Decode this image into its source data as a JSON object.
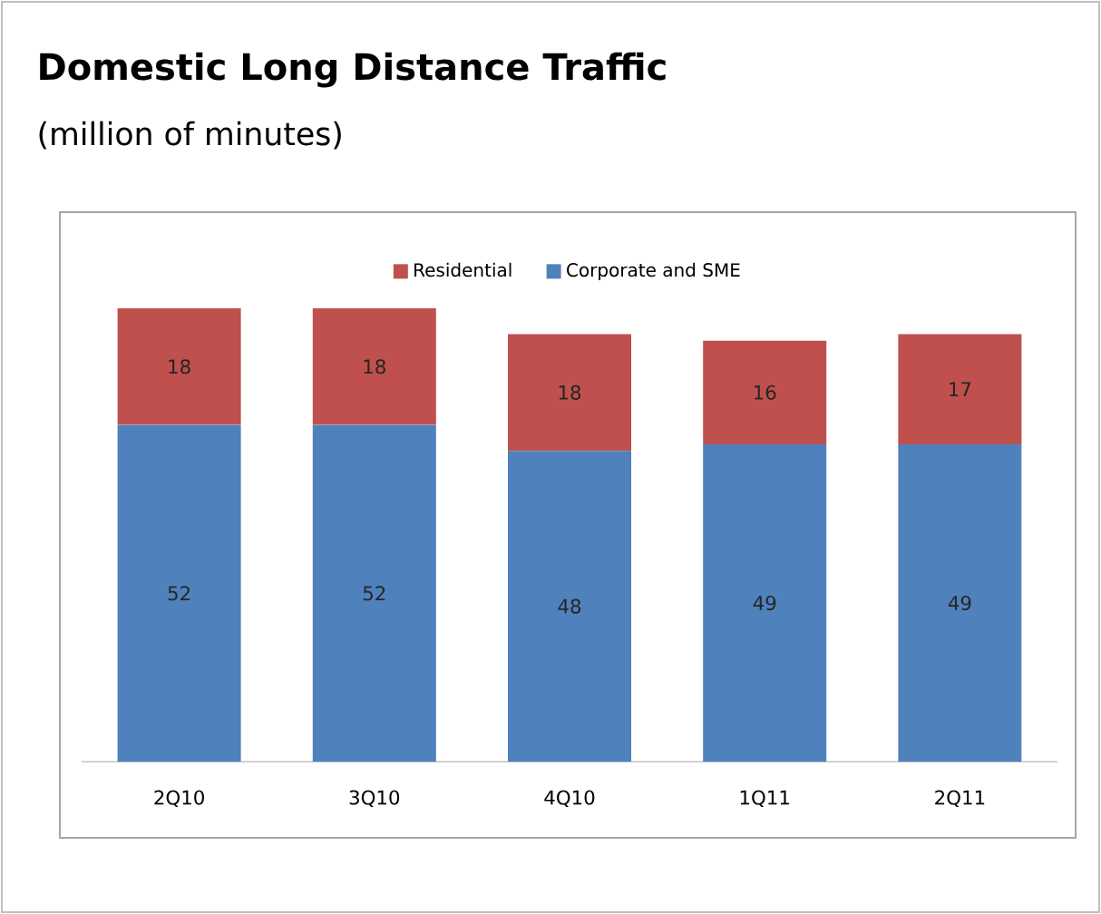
{
  "chart_data": {
    "type": "bar",
    "title": "Domestic Long Distance Traffic",
    "subtitle": "(million of minutes)",
    "stacked": true,
    "data_labels": true,
    "legend": "top",
    "categories": [
      "2Q10",
      "3Q10",
      "4Q10",
      "1Q11",
      "2Q11"
    ],
    "series": [
      {
        "name": "Corporate and SME",
        "color": "#4f81bd",
        "values": [
          52,
          52,
          48,
          49,
          49
        ]
      },
      {
        "name": "Residential",
        "color": "#c0504d",
        "values": [
          18,
          18,
          18,
          16,
          17
        ]
      }
    ]
  }
}
